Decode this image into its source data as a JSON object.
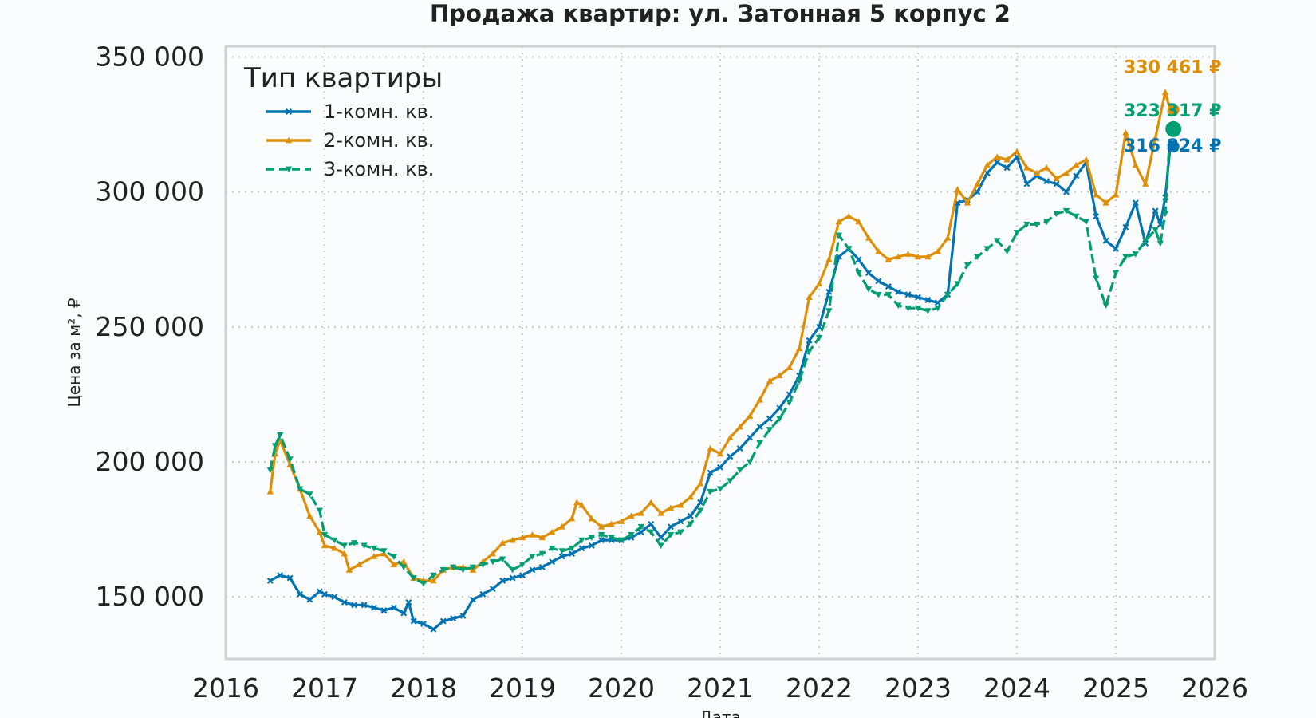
{
  "chart_data": {
    "type": "line",
    "title": "Продажа квартир: ул. Затонная 5 корпус 2",
    "xlabel": "Дата",
    "ylabel": "Цена за м², ₽",
    "xlim": [
      2016,
      2026
    ],
    "ylim": [
      127000,
      354000
    ],
    "x_ticks": [
      "2016",
      "2017",
      "2018",
      "2019",
      "2020",
      "2021",
      "2022",
      "2023",
      "2024",
      "2025",
      "2026"
    ],
    "y_ticks": [
      "150 000",
      "200 000",
      "250 000",
      "300 000",
      "350 000"
    ],
    "y_tick_values": [
      150000,
      200000,
      250000,
      300000,
      350000
    ],
    "grid": true,
    "legend": {
      "title": "Тип квартиры",
      "placement": "top-left"
    },
    "series": [
      {
        "name": "1-комн. кв.",
        "color": "#0173b2",
        "marker": "x",
        "linestyle": "solid",
        "end_label": "316 824 ₽",
        "end_value": 316824,
        "points": [
          [
            2016.45,
            156000
          ],
          [
            2016.55,
            158000
          ],
          [
            2016.65,
            157000
          ],
          [
            2016.75,
            151000
          ],
          [
            2016.85,
            149000
          ],
          [
            2016.95,
            152000
          ],
          [
            2017.0,
            151000
          ],
          [
            2017.1,
            150000
          ],
          [
            2017.2,
            148000
          ],
          [
            2017.3,
            147000
          ],
          [
            2017.4,
            147000
          ],
          [
            2017.5,
            146000
          ],
          [
            2017.6,
            145000
          ],
          [
            2017.7,
            146000
          ],
          [
            2017.8,
            144000
          ],
          [
            2017.85,
            148000
          ],
          [
            2017.9,
            141000
          ],
          [
            2018.0,
            140000
          ],
          [
            2018.1,
            138000
          ],
          [
            2018.2,
            141000
          ],
          [
            2018.3,
            142000
          ],
          [
            2018.4,
            143000
          ],
          [
            2018.5,
            149000
          ],
          [
            2018.6,
            151000
          ],
          [
            2018.7,
            153000
          ],
          [
            2018.8,
            156000
          ],
          [
            2018.9,
            157000
          ],
          [
            2019.0,
            158000
          ],
          [
            2019.1,
            160000
          ],
          [
            2019.2,
            161000
          ],
          [
            2019.3,
            163000
          ],
          [
            2019.4,
            165000
          ],
          [
            2019.5,
            166000
          ],
          [
            2019.6,
            168000
          ],
          [
            2019.7,
            169000
          ],
          [
            2019.8,
            171000
          ],
          [
            2019.9,
            171000
          ],
          [
            2020.0,
            171000
          ],
          [
            2020.1,
            172000
          ],
          [
            2020.2,
            174000
          ],
          [
            2020.3,
            177000
          ],
          [
            2020.4,
            172000
          ],
          [
            2020.5,
            176000
          ],
          [
            2020.6,
            178000
          ],
          [
            2020.7,
            180000
          ],
          [
            2020.8,
            185000
          ],
          [
            2020.9,
            196000
          ],
          [
            2021.0,
            198000
          ],
          [
            2021.1,
            202000
          ],
          [
            2021.2,
            205000
          ],
          [
            2021.3,
            209000
          ],
          [
            2021.4,
            213000
          ],
          [
            2021.5,
            216000
          ],
          [
            2021.6,
            220000
          ],
          [
            2021.7,
            225000
          ],
          [
            2021.8,
            232000
          ],
          [
            2021.9,
            245000
          ],
          [
            2022.0,
            250000
          ],
          [
            2022.1,
            263000
          ],
          [
            2022.2,
            276000
          ],
          [
            2022.3,
            279000
          ],
          [
            2022.4,
            275000
          ],
          [
            2022.5,
            270000
          ],
          [
            2022.6,
            267000
          ],
          [
            2022.7,
            265000
          ],
          [
            2022.8,
            263000
          ],
          [
            2022.9,
            262000
          ],
          [
            2023.0,
            261000
          ],
          [
            2023.1,
            260000
          ],
          [
            2023.2,
            259000
          ],
          [
            2023.3,
            262000
          ],
          [
            2023.4,
            296000
          ],
          [
            2023.5,
            297000
          ],
          [
            2023.6,
            300000
          ],
          [
            2023.7,
            307000
          ],
          [
            2023.8,
            311000
          ],
          [
            2023.9,
            309000
          ],
          [
            2024.0,
            313000
          ],
          [
            2024.1,
            303000
          ],
          [
            2024.2,
            306000
          ],
          [
            2024.3,
            304000
          ],
          [
            2024.4,
            303000
          ],
          [
            2024.5,
            300000
          ],
          [
            2024.6,
            306000
          ],
          [
            2024.7,
            311000
          ],
          [
            2024.8,
            291000
          ],
          [
            2024.9,
            282000
          ],
          [
            2025.0,
            279000
          ],
          [
            2025.1,
            287000
          ],
          [
            2025.2,
            296000
          ],
          [
            2025.3,
            281000
          ],
          [
            2025.4,
            293000
          ],
          [
            2025.45,
            288000
          ],
          [
            2025.5,
            298000
          ],
          [
            2025.55,
            316824
          ]
        ]
      },
      {
        "name": "2-комн. кв.",
        "color": "#de8f05",
        "marker": "^",
        "linestyle": "solid",
        "end_label": "330 461 ₽",
        "end_value": 330461,
        "points": [
          [
            2016.45,
            189000
          ],
          [
            2016.5,
            203000
          ],
          [
            2016.55,
            208000
          ],
          [
            2016.65,
            199000
          ],
          [
            2016.75,
            190000
          ],
          [
            2016.85,
            180000
          ],
          [
            2016.95,
            174000
          ],
          [
            2017.0,
            169000
          ],
          [
            2017.1,
            168000
          ],
          [
            2017.2,
            166000
          ],
          [
            2017.25,
            160000
          ],
          [
            2017.35,
            162000
          ],
          [
            2017.5,
            165000
          ],
          [
            2017.6,
            166000
          ],
          [
            2017.7,
            162000
          ],
          [
            2017.8,
            163000
          ],
          [
            2017.9,
            157000
          ],
          [
            2018.0,
            156000
          ],
          [
            2018.1,
            156000
          ],
          [
            2018.2,
            160000
          ],
          [
            2018.3,
            161000
          ],
          [
            2018.4,
            161000
          ],
          [
            2018.5,
            160000
          ],
          [
            2018.6,
            163000
          ],
          [
            2018.7,
            166000
          ],
          [
            2018.8,
            170000
          ],
          [
            2018.9,
            171000
          ],
          [
            2019.0,
            172000
          ],
          [
            2019.1,
            173000
          ],
          [
            2019.2,
            172000
          ],
          [
            2019.3,
            174000
          ],
          [
            2019.4,
            176000
          ],
          [
            2019.5,
            179000
          ],
          [
            2019.55,
            185000
          ],
          [
            2019.6,
            184000
          ],
          [
            2019.7,
            179000
          ],
          [
            2019.8,
            176000
          ],
          [
            2019.9,
            177000
          ],
          [
            2020.0,
            178000
          ],
          [
            2020.1,
            180000
          ],
          [
            2020.2,
            181000
          ],
          [
            2020.3,
            185000
          ],
          [
            2020.4,
            181000
          ],
          [
            2020.5,
            183000
          ],
          [
            2020.6,
            184000
          ],
          [
            2020.7,
            187000
          ],
          [
            2020.8,
            192000
          ],
          [
            2020.9,
            205000
          ],
          [
            2021.0,
            203000
          ],
          [
            2021.1,
            209000
          ],
          [
            2021.2,
            213000
          ],
          [
            2021.3,
            217000
          ],
          [
            2021.4,
            223000
          ],
          [
            2021.5,
            230000
          ],
          [
            2021.6,
            232000
          ],
          [
            2021.7,
            235000
          ],
          [
            2021.8,
            242000
          ],
          [
            2021.9,
            261000
          ],
          [
            2022.0,
            266000
          ],
          [
            2022.1,
            275000
          ],
          [
            2022.2,
            289000
          ],
          [
            2022.3,
            291000
          ],
          [
            2022.4,
            289000
          ],
          [
            2022.5,
            283000
          ],
          [
            2022.6,
            278000
          ],
          [
            2022.7,
            275000
          ],
          [
            2022.8,
            276000
          ],
          [
            2022.9,
            277000
          ],
          [
            2023.0,
            276000
          ],
          [
            2023.1,
            276000
          ],
          [
            2023.2,
            278000
          ],
          [
            2023.3,
            283000
          ],
          [
            2023.4,
            301000
          ],
          [
            2023.5,
            296000
          ],
          [
            2023.6,
            303000
          ],
          [
            2023.7,
            310000
          ],
          [
            2023.8,
            313000
          ],
          [
            2023.9,
            312000
          ],
          [
            2024.0,
            315000
          ],
          [
            2024.1,
            309000
          ],
          [
            2024.2,
            307000
          ],
          [
            2024.3,
            309000
          ],
          [
            2024.4,
            305000
          ],
          [
            2024.5,
            307000
          ],
          [
            2024.6,
            310000
          ],
          [
            2024.7,
            312000
          ],
          [
            2024.8,
            299000
          ],
          [
            2024.9,
            296000
          ],
          [
            2025.0,
            299000
          ],
          [
            2025.1,
            322000
          ],
          [
            2025.2,
            310000
          ],
          [
            2025.3,
            303000
          ],
          [
            2025.4,
            320000
          ],
          [
            2025.5,
            337000
          ],
          [
            2025.55,
            330461
          ]
        ]
      },
      {
        "name": "3-комн. кв.",
        "color": "#029e73",
        "marker": "v",
        "linestyle": "dashed",
        "end_label": "323 317 ₽",
        "end_value": 323317,
        "points": [
          [
            2016.45,
            197000
          ],
          [
            2016.5,
            206000
          ],
          [
            2016.55,
            210000
          ],
          [
            2016.65,
            201000
          ],
          [
            2016.75,
            190000
          ],
          [
            2016.85,
            188000
          ],
          [
            2016.95,
            182000
          ],
          [
            2017.0,
            173000
          ],
          [
            2017.1,
            171000
          ],
          [
            2017.2,
            169000
          ],
          [
            2017.3,
            170000
          ],
          [
            2017.4,
            169000
          ],
          [
            2017.5,
            168000
          ],
          [
            2017.6,
            167000
          ],
          [
            2017.7,
            165000
          ],
          [
            2017.8,
            161000
          ],
          [
            2017.9,
            157000
          ],
          [
            2018.0,
            155000
          ],
          [
            2018.1,
            158000
          ],
          [
            2018.2,
            160000
          ],
          [
            2018.3,
            161000
          ],
          [
            2018.4,
            160000
          ],
          [
            2018.5,
            161000
          ],
          [
            2018.6,
            162000
          ],
          [
            2018.7,
            163000
          ],
          [
            2018.8,
            164000
          ],
          [
            2018.9,
            160000
          ],
          [
            2019.0,
            162000
          ],
          [
            2019.1,
            165000
          ],
          [
            2019.2,
            166000
          ],
          [
            2019.3,
            168000
          ],
          [
            2019.4,
            167000
          ],
          [
            2019.5,
            168000
          ],
          [
            2019.6,
            171000
          ],
          [
            2019.7,
            172000
          ],
          [
            2019.8,
            173000
          ],
          [
            2019.9,
            172000
          ],
          [
            2020.0,
            171000
          ],
          [
            2020.1,
            173000
          ],
          [
            2020.2,
            176000
          ],
          [
            2020.3,
            174000
          ],
          [
            2020.4,
            169000
          ],
          [
            2020.5,
            173000
          ],
          [
            2020.6,
            174000
          ],
          [
            2020.7,
            177000
          ],
          [
            2020.8,
            182000
          ],
          [
            2020.9,
            189000
          ],
          [
            2021.0,
            190000
          ],
          [
            2021.1,
            193000
          ],
          [
            2021.2,
            197000
          ],
          [
            2021.3,
            200000
          ],
          [
            2021.4,
            207000
          ],
          [
            2021.5,
            212000
          ],
          [
            2021.6,
            216000
          ],
          [
            2021.7,
            222000
          ],
          [
            2021.8,
            230000
          ],
          [
            2021.9,
            241000
          ],
          [
            2022.0,
            246000
          ],
          [
            2022.1,
            256000
          ],
          [
            2022.2,
            284000
          ],
          [
            2022.3,
            279000
          ],
          [
            2022.4,
            270000
          ],
          [
            2022.5,
            264000
          ],
          [
            2022.6,
            262000
          ],
          [
            2022.7,
            262000
          ],
          [
            2022.8,
            258000
          ],
          [
            2022.9,
            257000
          ],
          [
            2023.0,
            257000
          ],
          [
            2023.1,
            256000
          ],
          [
            2023.2,
            257000
          ],
          [
            2023.3,
            262000
          ],
          [
            2023.4,
            266000
          ],
          [
            2023.5,
            273000
          ],
          [
            2023.6,
            276000
          ],
          [
            2023.7,
            279000
          ],
          [
            2023.8,
            282000
          ],
          [
            2023.9,
            278000
          ],
          [
            2024.0,
            285000
          ],
          [
            2024.1,
            288000
          ],
          [
            2024.2,
            288000
          ],
          [
            2024.3,
            289000
          ],
          [
            2024.4,
            292000
          ],
          [
            2024.5,
            293000
          ],
          [
            2024.6,
            291000
          ],
          [
            2024.7,
            289000
          ],
          [
            2024.8,
            268000
          ],
          [
            2024.9,
            258000
          ],
          [
            2025.0,
            270000
          ],
          [
            2025.1,
            276000
          ],
          [
            2025.2,
            277000
          ],
          [
            2025.3,
            282000
          ],
          [
            2025.4,
            286000
          ],
          [
            2025.45,
            281000
          ],
          [
            2025.5,
            292000
          ],
          [
            2025.55,
            323317
          ]
        ]
      }
    ]
  }
}
